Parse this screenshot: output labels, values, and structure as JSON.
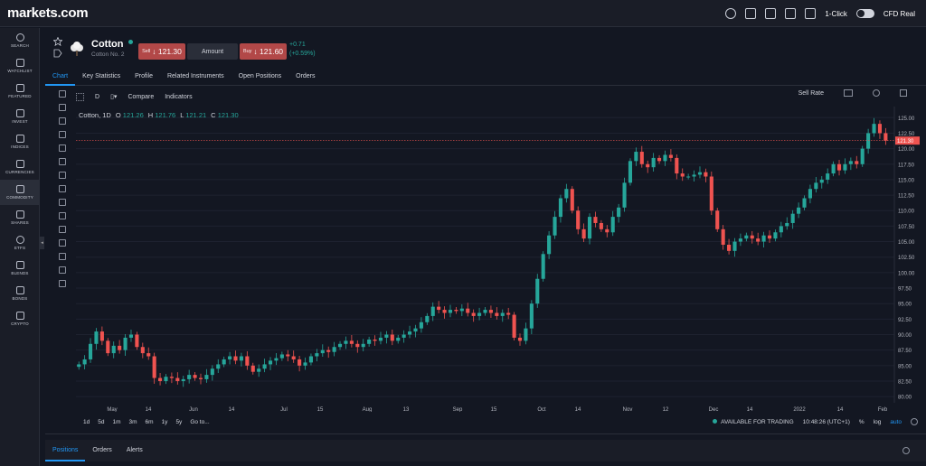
{
  "app": {
    "logo": "markets.com"
  },
  "topbar": {
    "one_click": "1-Click",
    "account": "CFD Real"
  },
  "sidebar": {
    "items": [
      {
        "label": "SEARCH",
        "icon": "search-icon"
      },
      {
        "label": "WATCHLIST",
        "icon": "star-icon"
      },
      {
        "label": "FEATURED",
        "icon": "flag-icon"
      },
      {
        "label": "INVEST",
        "icon": "invest-icon"
      },
      {
        "label": "INDICES",
        "icon": "indices-icon"
      },
      {
        "label": "CURRENCIES",
        "icon": "currencies-icon"
      },
      {
        "label": "COMMODITY",
        "icon": "commodity-icon"
      },
      {
        "label": "SHARES",
        "icon": "shares-icon"
      },
      {
        "label": "ETFS",
        "icon": "etfs-icon"
      },
      {
        "label": "BLENDS",
        "icon": "blends-icon"
      },
      {
        "label": "BONDS",
        "icon": "bonds-icon"
      },
      {
        "label": "CRYPTO",
        "icon": "crypto-icon"
      }
    ]
  },
  "instrument": {
    "name": "Cotton",
    "subtitle": "Cotton No. 2",
    "sell_label": "Sell",
    "sell_price": "↓ 121.30",
    "amount_label": "Amount",
    "buy_label": "Buy",
    "buy_price": "↓ 121.60",
    "change_abs": "+0.71",
    "change_pct": "(+0.59%)"
  },
  "tabs": [
    "Chart",
    "Key Statistics",
    "Profile",
    "Related Instruments",
    "Open Positions",
    "Orders"
  ],
  "toolbar": {
    "interval": "D",
    "compare": "Compare",
    "indicators": "Indicators",
    "rate": "Sell Rate"
  },
  "legend": {
    "symbol": "Cotton, 1D",
    "o_lbl": "O",
    "o": "121.26",
    "h_lbl": "H",
    "h": "121.76",
    "l_lbl": "L",
    "l": "121.21",
    "c_lbl": "C",
    "c": "121.30"
  },
  "price_axis": {
    "ticks": [
      "125.00",
      "122.50",
      "120.00",
      "117.50",
      "115.00",
      "112.50",
      "110.00",
      "107.50",
      "105.00",
      "102.50",
      "100.00",
      "97.50",
      "95.00",
      "92.50",
      "90.00",
      "87.50",
      "85.00",
      "82.50",
      "80.00"
    ],
    "current": "121.30"
  },
  "time_axis": {
    "labels": [
      "May",
      "14",
      "Jun",
      "14",
      "Jul",
      "15",
      "Aug",
      "13",
      "Sep",
      "15",
      "Oct",
      "14",
      "Nov",
      "12",
      "Dec",
      "14",
      "2022",
      "14",
      "Feb"
    ]
  },
  "ranges": [
    "1d",
    "5d",
    "1m",
    "3m",
    "6m",
    "1y",
    "5y",
    "Go to..."
  ],
  "status": {
    "available": "AVAILABLE FOR TRADING",
    "time": "10:48:26 (UTC+1)",
    "pct": "%",
    "log": "log",
    "auto": "auto"
  },
  "bottom_tabs": [
    "Positions",
    "Orders",
    "Alerts"
  ],
  "colors": {
    "up": "#26a69a",
    "down": "#ef5350",
    "accent": "#2196f3",
    "bg": "#131722"
  },
  "chart_data": {
    "type": "candlestick",
    "ylim": [
      79,
      126.5
    ],
    "current_price": 121.3,
    "closes": [
      85.2,
      86.0,
      88.5,
      90.5,
      89.0,
      87.0,
      88.2,
      87.5,
      89.5,
      90.0,
      88.0,
      87.0,
      86.5,
      83.0,
      82.5,
      83.2,
      83.0,
      82.5,
      82.8,
      83.5,
      83.0,
      82.8,
      83.5,
      84.5,
      85.2,
      86.0,
      86.5,
      85.8,
      86.5,
      85.0,
      84.0,
      84.5,
      85.2,
      85.8,
      86.2,
      86.8,
      86.5,
      86.0,
      85.0,
      85.5,
      86.5,
      87.0,
      87.5,
      87.2,
      88.0,
      88.5,
      89.0,
      88.5,
      88.0,
      88.5,
      89.2,
      89.0,
      89.5,
      90.0,
      89.0,
      89.5,
      90.0,
      90.5,
      91.0,
      92.0,
      93.0,
      94.5,
      94.0,
      93.5,
      94.0,
      93.8,
      94.2,
      93.5,
      93.0,
      93.5,
      94.0,
      93.5,
      93.0,
      93.5,
      93.2,
      89.5,
      89.0,
      91.0,
      95.0,
      99.0,
      103.0,
      106.0,
      109.0,
      112.0,
      113.5,
      110.0,
      107.0,
      105.5,
      109.0,
      108.0,
      107.0,
      106.5,
      109.0,
      110.5,
      114.5,
      118.0,
      119.5,
      117.5,
      117.0,
      118.5,
      118.0,
      119.0,
      118.5,
      116.0,
      115.5,
      115.5,
      115.8,
      116.2,
      115.5,
      110.0,
      107.0,
      104.5,
      103.5,
      105.0,
      105.5,
      106.0,
      105.5,
      105.0,
      106.0,
      105.5,
      106.5,
      107.5,
      108.0,
      109.5,
      110.5,
      112.0,
      113.5,
      114.5,
      115.0,
      116.0,
      117.5,
      116.5,
      117.5,
      118.0,
      117.5,
      120.0,
      122.5,
      124.0,
      122.5,
      121.3
    ]
  }
}
